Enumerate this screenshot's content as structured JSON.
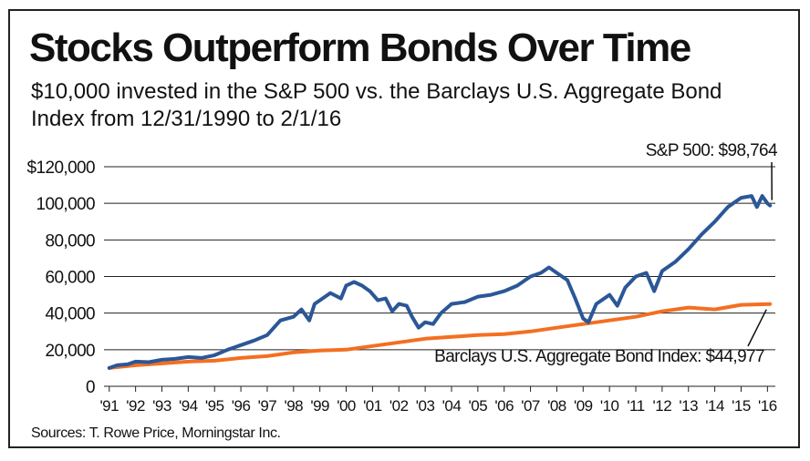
{
  "chart_data": {
    "type": "line",
    "title": "Stocks Outperform Bonds Over Time",
    "subtitle": "$10,000 invested in the S&P 500 vs. the Barclays U.S. Aggregate Bond Index from 12/31/1990 to 2/1/16",
    "source": "Sources: T. Rowe Price, Morningstar Inc.",
    "ylim": [
      0,
      120000
    ],
    "xlim": [
      1990.8,
      2016.3
    ],
    "grid": true,
    "y_ticks": [
      {
        "value": 120000,
        "label": "$120,000"
      },
      {
        "value": 100000,
        "label": "100,000"
      },
      {
        "value": 80000,
        "label": "80,000"
      },
      {
        "value": 60000,
        "label": "60,000"
      },
      {
        "value": 40000,
        "label": "40,000"
      },
      {
        "value": 20000,
        "label": "20,000"
      },
      {
        "value": 0,
        "label": "0"
      }
    ],
    "x_ticks": [
      {
        "value": 1991,
        "label": "'91"
      },
      {
        "value": 1992,
        "label": "'92"
      },
      {
        "value": 1993,
        "label": "'93"
      },
      {
        "value": 1994,
        "label": "'94"
      },
      {
        "value": 1995,
        "label": "'95"
      },
      {
        "value": 1996,
        "label": "'96"
      },
      {
        "value": 1997,
        "label": "'97"
      },
      {
        "value": 1998,
        "label": "'98"
      },
      {
        "value": 1999,
        "label": "'99"
      },
      {
        "value": 2000,
        "label": "'00"
      },
      {
        "value": 2001,
        "label": "'01"
      },
      {
        "value": 2002,
        "label": "'02"
      },
      {
        "value": 2003,
        "label": "'03"
      },
      {
        "value": 2004,
        "label": "'04"
      },
      {
        "value": 2005,
        "label": "'05"
      },
      {
        "value": 2006,
        "label": "'06"
      },
      {
        "value": 2007,
        "label": "'07"
      },
      {
        "value": 2008,
        "label": "'08"
      },
      {
        "value": 2009,
        "label": "'09"
      },
      {
        "value": 2010,
        "label": "'10"
      },
      {
        "value": 2011,
        "label": "'11"
      },
      {
        "value": 2012,
        "label": "'12"
      },
      {
        "value": 2013,
        "label": "'13"
      },
      {
        "value": 2014,
        "label": "'14"
      },
      {
        "value": 2015,
        "label": "'15"
      },
      {
        "value": 2016,
        "label": "'16"
      }
    ],
    "series": [
      {
        "name": "S&P 500",
        "color": "#2b5797",
        "end_label": "S&P 500: $98,764",
        "x": [
          1991.0,
          1991.3,
          1991.7,
          1992.0,
          1992.5,
          1993.0,
          1993.5,
          1994.0,
          1994.5,
          1995.0,
          1995.5,
          1996.0,
          1996.5,
          1997.0,
          1997.5,
          1998.0,
          1998.3,
          1998.6,
          1998.8,
          1999.0,
          1999.4,
          1999.8,
          2000.0,
          2000.3,
          2000.6,
          2000.9,
          2001.2,
          2001.5,
          2001.75,
          2002.0,
          2002.3,
          2002.5,
          2002.75,
          2003.0,
          2003.3,
          2003.6,
          2004.0,
          2004.5,
          2005.0,
          2005.5,
          2006.0,
          2006.5,
          2007.0,
          2007.4,
          2007.7,
          2008.0,
          2008.4,
          2008.7,
          2009.0,
          2009.2,
          2009.5,
          2010.0,
          2010.3,
          2010.6,
          2011.0,
          2011.4,
          2011.7,
          2012.0,
          2012.5,
          2013.0,
          2013.5,
          2014.0,
          2014.5,
          2015.0,
          2015.4,
          2015.6,
          2015.8,
          2016.0,
          2016.1
        ],
        "y": [
          10000,
          11500,
          12000,
          13500,
          13200,
          14500,
          15000,
          16000,
          15500,
          17000,
          20000,
          22500,
          25000,
          28000,
          36000,
          38000,
          42000,
          36000,
          45000,
          47000,
          51000,
          48000,
          55000,
          57000,
          55000,
          52000,
          47000,
          48000,
          41000,
          45000,
          44000,
          38000,
          32000,
          35000,
          34000,
          40000,
          45000,
          46000,
          49000,
          50000,
          52000,
          55000,
          60000,
          62000,
          65000,
          62000,
          58000,
          48000,
          37000,
          35000,
          45000,
          50000,
          44000,
          54000,
          60000,
          62000,
          52000,
          63000,
          68000,
          75000,
          83000,
          90000,
          98000,
          103000,
          104000,
          98000,
          104000,
          100000,
          98764
        ]
      },
      {
        "name": "Barclays U.S. Aggregate Bond Index",
        "color": "#f36f21",
        "end_label": "Barclays U.S. Aggregate Bond Index: $44,977",
        "x": [
          1991,
          1992,
          1993,
          1994,
          1995,
          1996,
          1997,
          1998,
          1999,
          2000,
          2001,
          2002,
          2003,
          2004,
          2005,
          2006,
          2007,
          2008,
          2009,
          2010,
          2011,
          2012,
          2013,
          2014,
          2015,
          2016.1
        ],
        "y": [
          10000,
          11500,
          12500,
          13500,
          14000,
          15500,
          16500,
          18500,
          19500,
          20000,
          22000,
          24000,
          26000,
          27000,
          28000,
          28500,
          30000,
          32000,
          34000,
          36000,
          38000,
          41000,
          43000,
          42000,
          44500,
          44977
        ]
      }
    ]
  }
}
